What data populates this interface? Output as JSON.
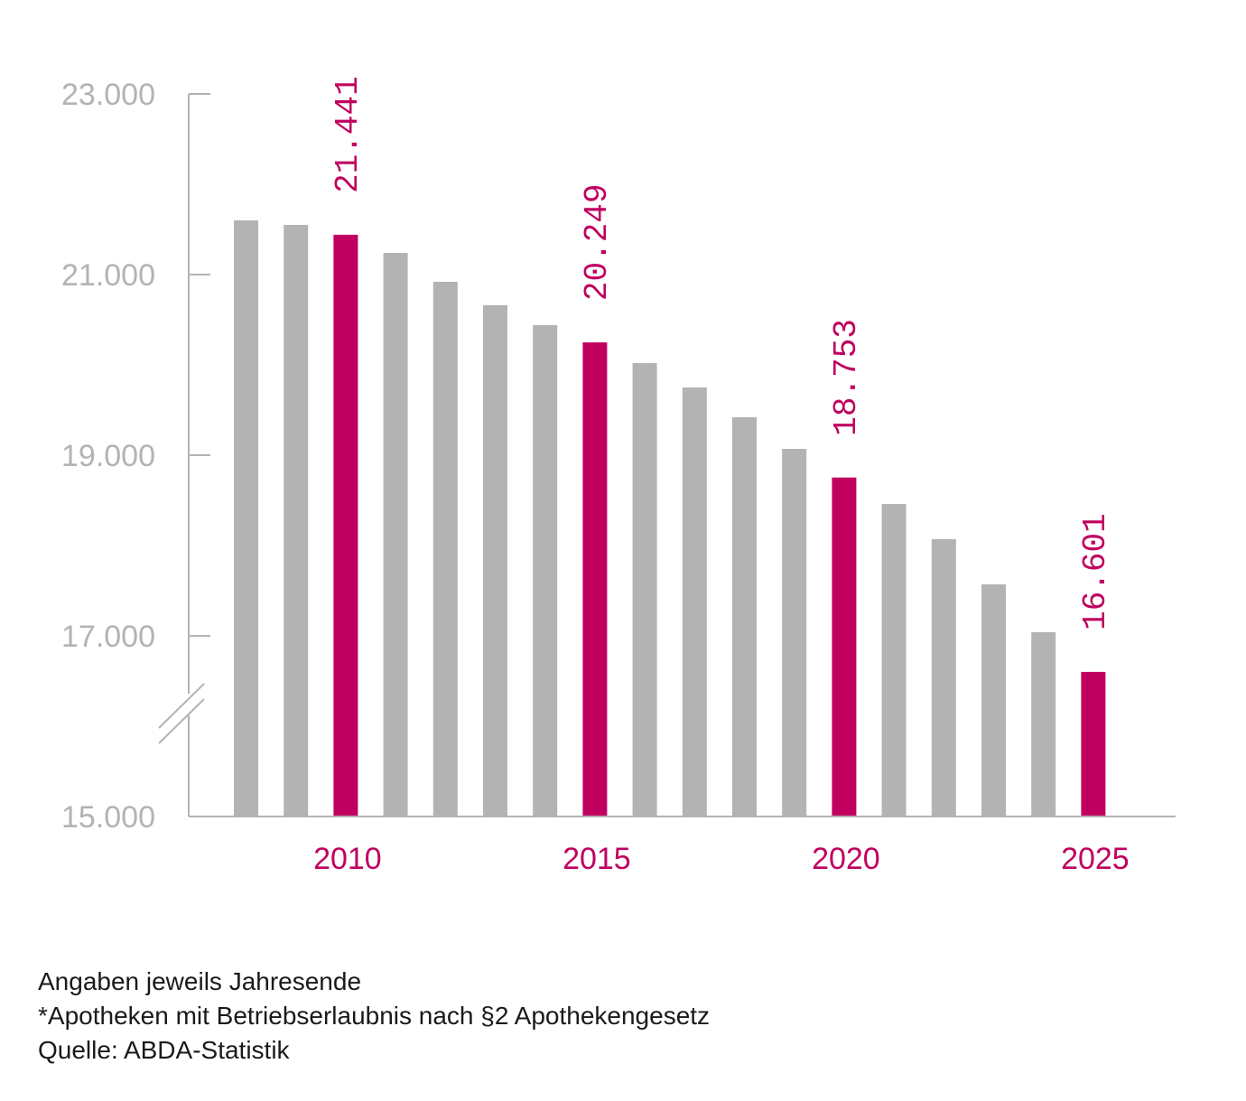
{
  "chart_data": {
    "type": "bar",
    "title": "",
    "xlabel": "",
    "ylabel": "",
    "ylim": [
      15000,
      23000
    ],
    "y_ticks": [
      15000,
      17000,
      19000,
      21000,
      23000
    ],
    "y_tick_labels": [
      "15.000",
      "17.000",
      "19.000",
      "21.000",
      "23.000"
    ],
    "y_axis_break": true,
    "grid": false,
    "categories": [
      "2008",
      "2009",
      "2010",
      "2011",
      "2012",
      "2013",
      "2014",
      "2015",
      "2016",
      "2017",
      "2018",
      "2019",
      "2020",
      "2021",
      "2022",
      "2023",
      "2024",
      "2025"
    ],
    "values": [
      21600,
      21550,
      21441,
      21240,
      20920,
      20660,
      20440,
      20249,
      20020,
      19750,
      19420,
      19070,
      18753,
      18460,
      18070,
      17570,
      17040,
      16601
    ],
    "highlighted": [
      "2010",
      "2015",
      "2020",
      "2025"
    ],
    "x_tick_labels": [
      "2010",
      "2015",
      "2020",
      "2025"
    ],
    "data_labels": {
      "2010": "21.441",
      "2015": "20.249",
      "2020": "18.753",
      "2025": "16.601"
    },
    "colors": {
      "bar": "#b3b3b3",
      "highlight": "#c0005f",
      "axis": "#b3b3b3"
    }
  },
  "footer": {
    "lines": [
      "Angaben jeweils Jahresende",
      "*Apotheken mit Betriebserlaubnis nach §2 Apothekengesetz",
      "Quelle: ABDA-Statistik"
    ]
  }
}
